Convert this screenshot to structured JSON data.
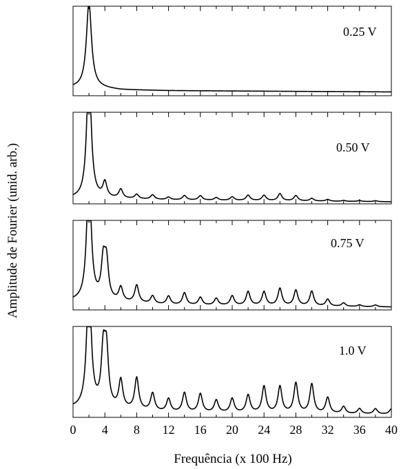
{
  "chart_data": [
    {
      "type": "line",
      "annotation": "0.25 V",
      "xlim": [
        0,
        40
      ],
      "ylim": [
        0,
        1.0
      ],
      "base": 0.02,
      "width": 0.35,
      "peaks": [
        [
          2.0,
          0.98
        ]
      ],
      "noise": [
        [
          3.0,
          0.05
        ],
        [
          6.0,
          0.025
        ],
        [
          12.0,
          0.015
        ],
        [
          40.0,
          0.0
        ]
      ]
    },
    {
      "type": "line",
      "annotation": "0.50 V",
      "xlim": [
        0,
        40
      ],
      "ylim": [
        0,
        1.0
      ],
      "base": 0.0,
      "width": 0.3,
      "peaks": [
        [
          2.0,
          1.5
        ],
        [
          4.0,
          0.17
        ],
        [
          6.0,
          0.1
        ],
        [
          8.0,
          0.05
        ],
        [
          10.0,
          0.05
        ],
        [
          12.0,
          0.03
        ],
        [
          14.0,
          0.05
        ],
        [
          16.0,
          0.05
        ],
        [
          18.0,
          0.03
        ],
        [
          20.0,
          0.04
        ],
        [
          22.0,
          0.06
        ],
        [
          24.0,
          0.06
        ],
        [
          26.0,
          0.08
        ],
        [
          28.0,
          0.06
        ],
        [
          30.0,
          0.03
        ],
        [
          32.0,
          0.02
        ],
        [
          34.0,
          0.01
        ],
        [
          36.0,
          0.01
        ],
        [
          38.0,
          0.01
        ]
      ],
      "noise": [
        [
          3.0,
          0.04
        ],
        [
          12.0,
          0.02
        ],
        [
          40.0,
          0.0
        ]
      ]
    },
    {
      "type": "line",
      "annotation": "0.75 V",
      "xlim": [
        0,
        40
      ],
      "ylim": [
        0,
        1.0
      ],
      "base": 0.0,
      "width": 0.3,
      "peaks": [
        [
          2.0,
          1.5
        ],
        [
          3.8,
          0.42
        ],
        [
          4.2,
          0.42
        ],
        [
          6.0,
          0.16
        ],
        [
          8.0,
          0.2
        ],
        [
          10.0,
          0.09
        ],
        [
          12.0,
          0.1
        ],
        [
          14.0,
          0.14
        ],
        [
          16.0,
          0.09
        ],
        [
          18.0,
          0.08
        ],
        [
          20.0,
          0.11
        ],
        [
          22.0,
          0.16
        ],
        [
          24.0,
          0.16
        ],
        [
          26.0,
          0.2
        ],
        [
          28.0,
          0.18
        ],
        [
          30.0,
          0.17
        ],
        [
          32.0,
          0.08
        ],
        [
          34.0,
          0.04
        ],
        [
          36.0,
          0.02
        ],
        [
          38.0,
          0.02
        ]
      ],
      "noise": [
        [
          3.0,
          0.08
        ],
        [
          12.0,
          0.03
        ],
        [
          40.0,
          0.01
        ]
      ]
    },
    {
      "type": "line",
      "annotation": "1.0 V",
      "xlabel": "Frequência (x 100 Hz)",
      "xticks": [
        0,
        4,
        8,
        12,
        16,
        20,
        24,
        28,
        32,
        36,
        40
      ],
      "xlim": [
        0,
        40
      ],
      "ylim": [
        0,
        1.0
      ],
      "base": 0.0,
      "width": 0.3,
      "peaks": [
        [
          2.0,
          1.5
        ],
        [
          3.8,
          0.6
        ],
        [
          4.2,
          0.6
        ],
        [
          6.0,
          0.32
        ],
        [
          8.0,
          0.36
        ],
        [
          10.0,
          0.2
        ],
        [
          12.0,
          0.15
        ],
        [
          14.0,
          0.22
        ],
        [
          16.0,
          0.21
        ],
        [
          18.0,
          0.14
        ],
        [
          20.0,
          0.16
        ],
        [
          22.0,
          0.2
        ],
        [
          24.0,
          0.3
        ],
        [
          26.0,
          0.3
        ],
        [
          28.0,
          0.34
        ],
        [
          30.0,
          0.33
        ],
        [
          32.0,
          0.18
        ],
        [
          34.0,
          0.08
        ],
        [
          36.0,
          0.06
        ],
        [
          38.0,
          0.06
        ],
        [
          40.0,
          0.06
        ]
      ],
      "noise": [
        [
          3.0,
          0.08
        ],
        [
          12.0,
          0.03
        ],
        [
          40.0,
          0.01
        ]
      ]
    }
  ],
  "ylabel": "Amplitude de Fourier (unid. arb.)"
}
